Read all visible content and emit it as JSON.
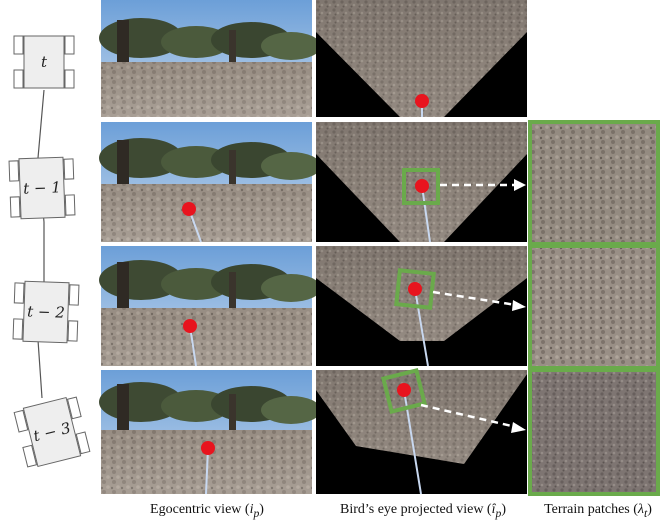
{
  "robot_states": [
    {
      "label": "t"
    },
    {
      "label": "t − 1"
    },
    {
      "label": "t − 2"
    },
    {
      "label": "t − 3"
    }
  ],
  "captions": {
    "egocentric": {
      "text": "Egocentric view (",
      "symbol": "i",
      "subscript": "p",
      "close": ")"
    },
    "birds_eye": {
      "text": "Bird’s eye projected view (",
      "symbol": "î",
      "subscript": "p",
      "close": ")"
    },
    "terrain": {
      "text": "Terrain patches (",
      "symbol": "λ",
      "subscript": "t",
      "close": ")"
    }
  },
  "colors": {
    "patch_border": "#6aaa4b",
    "marker": "#e8141e",
    "trajectory": "#c8d8f0",
    "robot_fill": "#eeeeee",
    "robot_stroke": "#666666"
  }
}
